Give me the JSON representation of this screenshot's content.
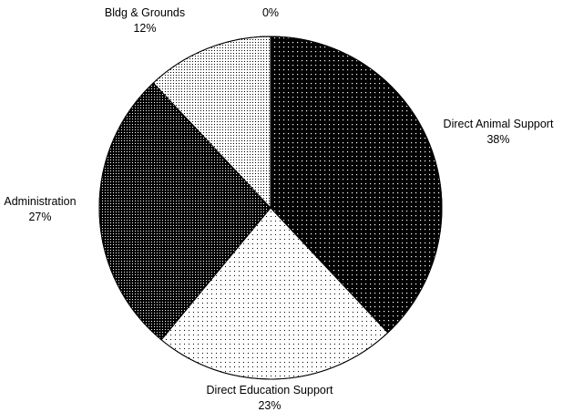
{
  "chart_data": {
    "type": "pie",
    "title": "",
    "slices": [
      {
        "label": "Direct Animal Support",
        "value": 38,
        "pct_text": "38%",
        "pattern": "dark-dots"
      },
      {
        "label": "Direct Education Support",
        "value": 23,
        "pct_text": "23%",
        "pattern": "light-dots"
      },
      {
        "label": "Administration",
        "value": 27,
        "pct_text": "27%",
        "pattern": "dark-grid"
      },
      {
        "label": "Bldg & Grounds",
        "value": 12,
        "pct_text": "12%",
        "pattern": "medium-dots"
      },
      {
        "label": "",
        "value": 0,
        "pct_text": "0%",
        "pattern": "none"
      }
    ],
    "start_angle": "12 o'clock",
    "direction": "clockwise",
    "legend": "none",
    "colors": {
      "background": "#ffffff",
      "ink": "#000000"
    }
  }
}
